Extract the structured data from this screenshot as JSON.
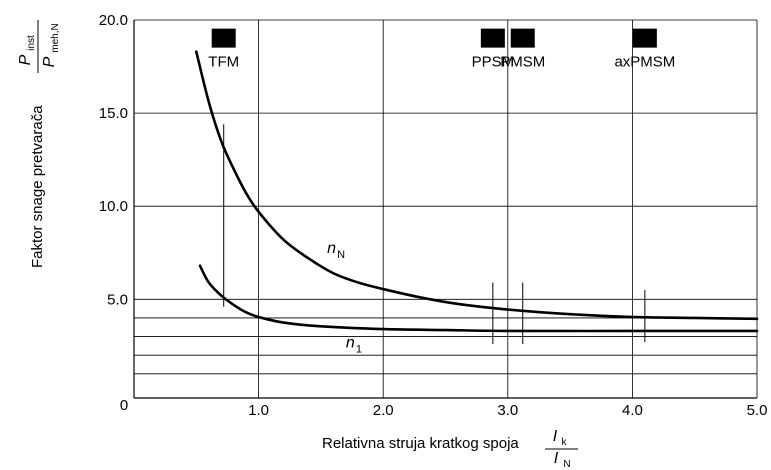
{
  "chart_data": {
    "type": "line",
    "title": "",
    "xlabel": "Relativna struja kratkog spoja",
    "xlabel_fraction": {
      "numerator": "I",
      "numerator_sub": "k",
      "denominator": "I",
      "denominator_sub": "N"
    },
    "ylabel": "Faktor snage pretvarača",
    "ylabel_fraction": {
      "numerator": "P",
      "numerator_sub": "inst",
      "denominator": "P",
      "denominator_sub": "meh,N"
    },
    "xlim": [
      0,
      5
    ],
    "ylim": [
      -0.3,
      20
    ],
    "x_origin_label": "0",
    "x_ticks": [
      {
        "value": 1,
        "label": "1.0"
      },
      {
        "value": 2,
        "label": "2.0"
      },
      {
        "value": 3,
        "label": "3.0"
      },
      {
        "value": 4,
        "label": "4.0"
      },
      {
        "value": 5,
        "label": "5.0"
      }
    ],
    "y_ticks": [
      {
        "value": 5,
        "label": "5.0"
      },
      {
        "value": 10,
        "label": "10.0"
      },
      {
        "value": 15,
        "label": "15.0"
      },
      {
        "value": 20,
        "label": "20.0"
      }
    ],
    "gridlines_y": [
      1,
      2,
      3,
      4,
      5,
      10,
      15,
      20
    ],
    "gridlines_x": [
      1,
      2,
      3,
      4,
      5
    ],
    "series": [
      {
        "name": "n_N",
        "label_main": "n",
        "label_sub": "N",
        "label_at": [
          1.55,
          7.5
        ],
        "points": [
          [
            0.5,
            18.3
          ],
          [
            0.6,
            15.6
          ],
          [
            0.7,
            13.5
          ],
          [
            0.8,
            12.0
          ],
          [
            0.9,
            10.7
          ],
          [
            1.0,
            9.7
          ],
          [
            1.2,
            8.2
          ],
          [
            1.4,
            7.2
          ],
          [
            1.6,
            6.4
          ],
          [
            1.8,
            5.9
          ],
          [
            2.0,
            5.55
          ],
          [
            2.3,
            5.1
          ],
          [
            2.6,
            4.75
          ],
          [
            3.0,
            4.45
          ],
          [
            3.5,
            4.2
          ],
          [
            4.0,
            4.05
          ],
          [
            4.5,
            4.0
          ],
          [
            5.0,
            3.95
          ]
        ]
      },
      {
        "name": "n_1",
        "label_main": "n",
        "label_sub": "1",
        "label_at": [
          1.7,
          2.4
        ],
        "points": [
          [
            0.53,
            6.8
          ],
          [
            0.6,
            5.9
          ],
          [
            0.7,
            5.2
          ],
          [
            0.8,
            4.7
          ],
          [
            0.9,
            4.3
          ],
          [
            1.0,
            4.05
          ],
          [
            1.2,
            3.75
          ],
          [
            1.5,
            3.55
          ],
          [
            2.0,
            3.4
          ],
          [
            2.5,
            3.35
          ],
          [
            3.0,
            3.3
          ],
          [
            4.0,
            3.3
          ],
          [
            5.0,
            3.3
          ]
        ]
      }
    ],
    "markers": [
      {
        "label": "TFM",
        "x": 0.72,
        "y": 19.0,
        "range": [
          4.6,
          14.4
        ]
      },
      {
        "label": "PPSM",
        "x": 2.88,
        "y": 19.0,
        "range": [
          2.6,
          5.9
        ]
      },
      {
        "label": "PMSM",
        "x": 3.12,
        "y": 19.0,
        "range": [
          2.6,
          5.9
        ]
      },
      {
        "label": "axPMSM",
        "x": 4.1,
        "y": 19.0,
        "range": [
          2.7,
          5.5
        ]
      }
    ]
  }
}
